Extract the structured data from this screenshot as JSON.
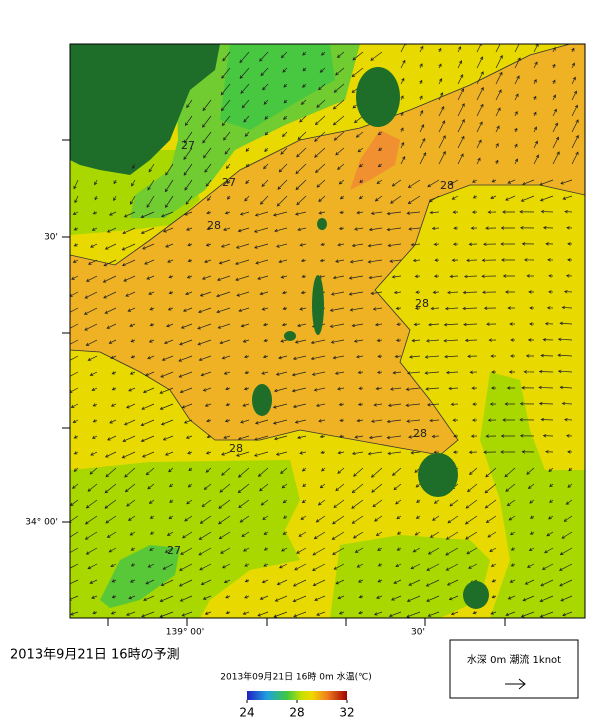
{
  "map": {
    "lat_labels": [
      "30'",
      "34° 00'"
    ],
    "lon_labels": [
      "139° 00'",
      "30'"
    ],
    "contour_labels": [
      27,
      27,
      28,
      28,
      28,
      28,
      28,
      27
    ]
  },
  "footer": {
    "title": "2013年9月21日 16時の予測",
    "subtitle": "2013年09月21日 16時 0m 水温(℃)",
    "colorbar_ticks": [
      24,
      28,
      32
    ],
    "legend": "水深 0m 潮流 1knot"
  }
}
